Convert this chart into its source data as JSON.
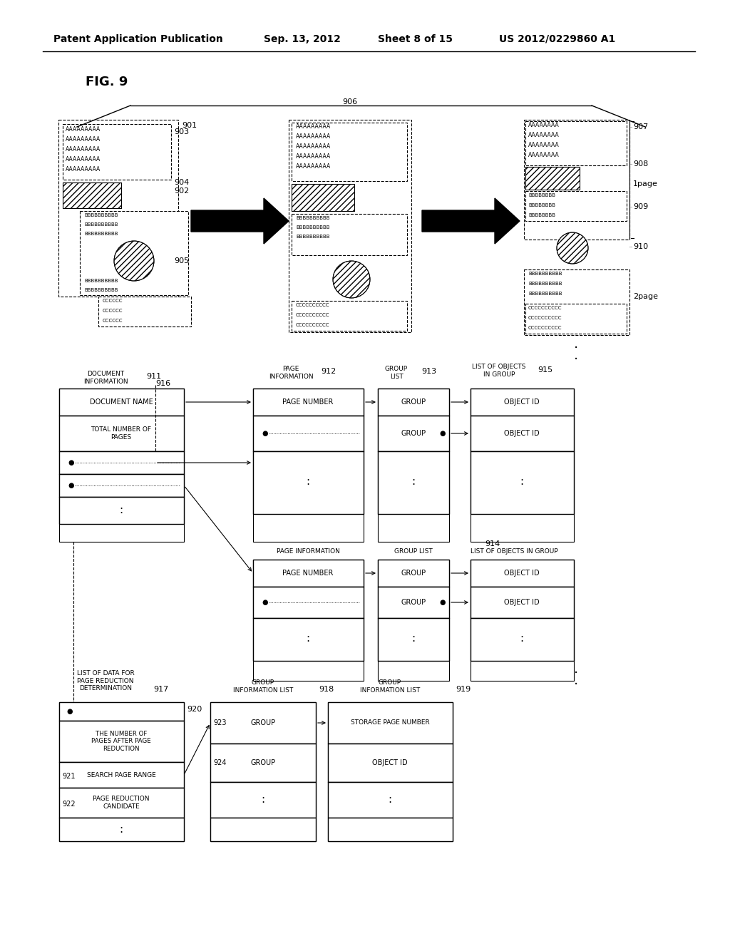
{
  "title_line1": "Patent Application Publication",
  "title_date": "Sep. 13, 2012",
  "title_sheet": "Sheet 8 of 15",
  "title_patent": "US 2012/0229860 A1",
  "fig_label": "FIG. 9",
  "bg_color": "#ffffff"
}
